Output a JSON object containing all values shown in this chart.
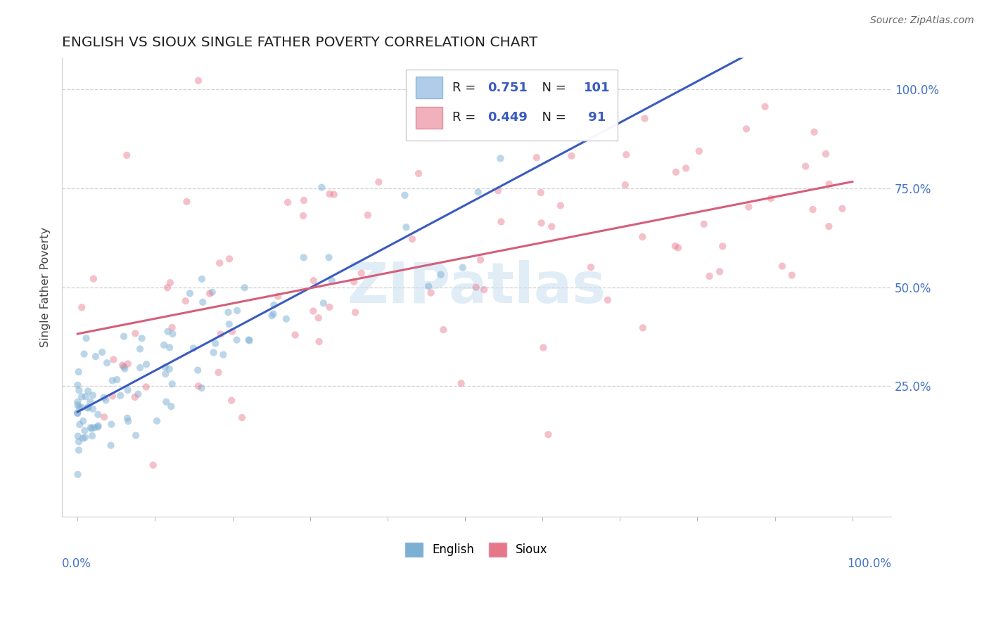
{
  "title": "ENGLISH VS SIOUX SINGLE FATHER POVERTY CORRELATION CHART",
  "source": "Source: ZipAtlas.com",
  "ylabel": "Single Father Poverty",
  "ytick_vals": [
    0.25,
    0.5,
    0.75,
    1.0
  ],
  "ytick_labels": [
    "25.0%",
    "50.0%",
    "75.0%",
    "100.0%"
  ],
  "legend_english_R": "0.751",
  "legend_english_N": "101",
  "legend_sioux_R": "0.449",
  "legend_sioux_N": "91",
  "english_color": "#7bafd4",
  "sioux_color": "#e8768a",
  "english_line_color": "#3a5bbf",
  "sioux_line_color": "#d45f7a",
  "english_legend_patch": "#b0cce8",
  "sioux_legend_patch": "#f0b0bc",
  "watermark_text": "ZIPatlas",
  "watermark_color": "#c8dff0",
  "english_seed": 17,
  "sioux_seed": 42,
  "xlim": [
    -0.02,
    1.05
  ],
  "ylim": [
    -0.08,
    1.08
  ]
}
